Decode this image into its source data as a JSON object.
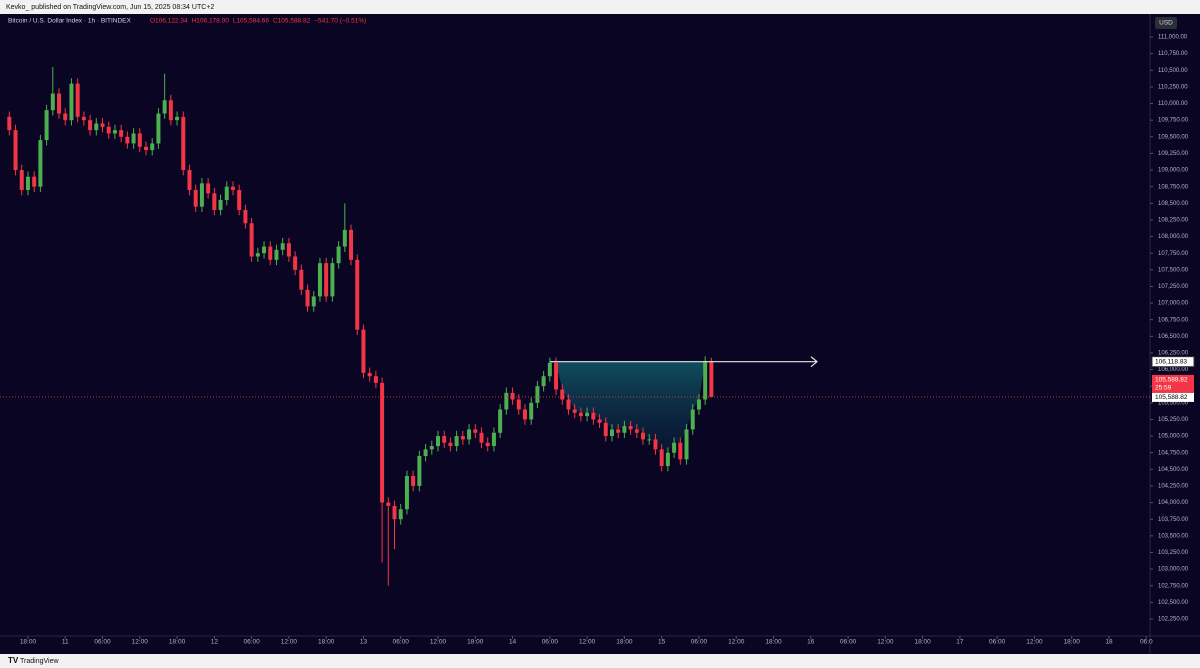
{
  "header": {
    "byline": "Kevko_ published on TradingView.com, Jun 15, 2025 08:34 UTC+2",
    "symbol": "Bitcoin / U.S. Dollar Index · 1h · BITINDEX",
    "ohlc": [
      "O106,122.34",
      "H106,178.00",
      "L105,584.66",
      "C105,588.82",
      "−541.70 (−0.51%)"
    ]
  },
  "footer": {
    "brand": "TradingView"
  },
  "chart_data": {
    "type": "candlestick",
    "currency": "USD",
    "up_color": "#4caf50",
    "down_color": "#f23645",
    "x": [
      0,
      1,
      2,
      3,
      4,
      5,
      6,
      7,
      8,
      9,
      10,
      11,
      12,
      13,
      14,
      15,
      16,
      17,
      18,
      19,
      20,
      21,
      22,
      23,
      24,
      25,
      26,
      27,
      28,
      29,
      30,
      31,
      32,
      33,
      34,
      35,
      36,
      37,
      38,
      39,
      40,
      41,
      42,
      43,
      44,
      45,
      46,
      47,
      48,
      49,
      50,
      51,
      52,
      53,
      54,
      55,
      56,
      57,
      58,
      59,
      60,
      61,
      62,
      63,
      64,
      65,
      66,
      67,
      68,
      69,
      70,
      71,
      72,
      73,
      74,
      75,
      76,
      77,
      78,
      79,
      80,
      81,
      82,
      83,
      84,
      85,
      86,
      87,
      88,
      89,
      90,
      91,
      92,
      93,
      94,
      95,
      96,
      97,
      98,
      99,
      100,
      101,
      102,
      103,
      104,
      105,
      106,
      107,
      108,
      109,
      110,
      111,
      112,
      113
    ],
    "open": [
      109800,
      109600,
      109000,
      108700,
      108900,
      108750,
      109450,
      109900,
      110150,
      109850,
      109750,
      110300,
      109800,
      109750,
      109600,
      109700,
      109650,
      109550,
      109600,
      109500,
      109400,
      109550,
      109350,
      109300,
      109400,
      109850,
      110050,
      109750,
      109800,
      109000,
      108700,
      108450,
      108800,
      108650,
      108400,
      108550,
      108750,
      108700,
      108400,
      108200,
      107700,
      107750,
      107850,
      107650,
      107800,
      107900,
      107700,
      107500,
      107200,
      106950,
      107100,
      107600,
      107100,
      107600,
      107850,
      108100,
      107650,
      106600,
      105950,
      105900,
      105800,
      104000,
      103950,
      103750,
      103900,
      104400,
      104250,
      104700,
      104800,
      104850,
      105000,
      104900,
      104850,
      105000,
      104950,
      105100,
      105050,
      104900,
      104850,
      105050,
      105400,
      105650,
      105550,
      105400,
      105250,
      105500,
      105750,
      105900,
      106100,
      105700,
      105550,
      105400,
      105350,
      105300,
      105350,
      105250,
      105200,
      105000,
      105100,
      105050,
      105150,
      105100,
      105050,
      104950,
      104950,
      104800,
      104550,
      104750,
      104900,
      104650,
      105100,
      105400,
      105550,
      106122.34
    ],
    "high": [
      109880,
      109680,
      109080,
      108980,
      108980,
      109530,
      109980,
      110550,
      110230,
      109930,
      110380,
      110380,
      109880,
      109830,
      109780,
      109780,
      109730,
      109680,
      109680,
      109580,
      109630,
      109630,
      109430,
      109480,
      109930,
      110450,
      110130,
      109880,
      109880,
      109080,
      108780,
      108880,
      108880,
      108730,
      108630,
      108830,
      108830,
      108780,
      108480,
      108280,
      107830,
      107930,
      107930,
      107880,
      107980,
      107980,
      107780,
      107580,
      107280,
      107180,
      107680,
      107680,
      107680,
      107930,
      108500,
      108180,
      107730,
      106680,
      106030,
      105980,
      105880,
      104080,
      104030,
      103980,
      104480,
      104480,
      104780,
      104880,
      104930,
      105080,
      105080,
      104980,
      105080,
      105080,
      105180,
      105180,
      105130,
      104980,
      105130,
      105480,
      105730,
      105730,
      105630,
      105480,
      105580,
      105830,
      105980,
      106180,
      106180,
      105780,
      105630,
      105480,
      105430,
      105430,
      105430,
      105330,
      105280,
      105180,
      105180,
      105230,
      105230,
      105180,
      105130,
      105030,
      105030,
      104880,
      104830,
      104980,
      104980,
      105180,
      105480,
      105630,
      106200,
      106178
    ],
    "low": [
      109520,
      108920,
      108620,
      108620,
      108670,
      108670,
      109370,
      109820,
      109770,
      109670,
      109670,
      109720,
      109670,
      109520,
      109520,
      109570,
      109470,
      109470,
      109420,
      109320,
      109320,
      109270,
      109220,
      109220,
      109320,
      109770,
      109670,
      109670,
      108920,
      108620,
      108370,
      108370,
      108570,
      108320,
      108320,
      108470,
      108620,
      108320,
      108120,
      107620,
      107620,
      107670,
      107570,
      107570,
      107720,
      107620,
      107420,
      107120,
      106870,
      106870,
      107020,
      107020,
      107020,
      107520,
      107770,
      107570,
      106520,
      105870,
      105820,
      105720,
      103100,
      102750,
      103300,
      103670,
      103820,
      104170,
      104170,
      104620,
      104720,
      104770,
      104820,
      104770,
      104770,
      104870,
      104870,
      104970,
      104820,
      104770,
      104770,
      104970,
      105320,
      105470,
      105320,
      105170,
      105170,
      105420,
      105670,
      105820,
      105620,
      105470,
      105320,
      105270,
      105220,
      105220,
      105170,
      105120,
      104920,
      104920,
      104970,
      104970,
      105020,
      104970,
      104870,
      104870,
      104720,
      104470,
      104470,
      104670,
      104570,
      104570,
      105020,
      105320,
      105470,
      105584.66
    ],
    "close": [
      109600,
      109000,
      108700,
      108900,
      108750,
      109450,
      109900,
      110150,
      109850,
      109750,
      110300,
      109800,
      109750,
      109600,
      109700,
      109650,
      109550,
      109600,
      109500,
      109400,
      109550,
      109350,
      109300,
      109400,
      109850,
      110050,
      109750,
      109800,
      109000,
      108700,
      108450,
      108800,
      108650,
      108400,
      108550,
      108750,
      108700,
      108400,
      108200,
      107700,
      107750,
      107850,
      107650,
      107800,
      107900,
      107700,
      107500,
      107200,
      106950,
      107100,
      107600,
      107100,
      107600,
      107850,
      108100,
      107650,
      106600,
      105950,
      105900,
      105800,
      104000,
      103950,
      103750,
      103900,
      104400,
      104250,
      104700,
      104800,
      104850,
      105000,
      104900,
      104850,
      105000,
      104950,
      105100,
      105050,
      104900,
      104850,
      105050,
      105400,
      105650,
      105550,
      105400,
      105250,
      105500,
      105750,
      105900,
      106100,
      105700,
      105550,
      105400,
      105350,
      105300,
      105350,
      105250,
      105200,
      105000,
      105100,
      105050,
      105150,
      105100,
      105050,
      104950,
      104950,
      104800,
      104550,
      104750,
      104900,
      104650,
      105100,
      105400,
      105550,
      106122.34,
      105588.82
    ],
    "xlim": [
      -1.5,
      183.6
    ],
    "xticks": [
      {
        "value": 3,
        "label": "18:00"
      },
      {
        "value": 9,
        "label": "11"
      },
      {
        "value": 15,
        "label": "06:00"
      },
      {
        "value": 21,
        "label": "12:00"
      },
      {
        "value": 27,
        "label": "18:00"
      },
      {
        "value": 33,
        "label": "12"
      },
      {
        "value": 39,
        "label": "06:00"
      },
      {
        "value": 45,
        "label": "12:00"
      },
      {
        "value": 51,
        "label": "18:00"
      },
      {
        "value": 57,
        "label": "13"
      },
      {
        "value": 63,
        "label": "06:00"
      },
      {
        "value": 69,
        "label": "12:00"
      },
      {
        "value": 75,
        "label": "18:00"
      },
      {
        "value": 81,
        "label": "14"
      },
      {
        "value": 87,
        "label": "06:00"
      },
      {
        "value": 93,
        "label": "12:00"
      },
      {
        "value": 99,
        "label": "18:00"
      },
      {
        "value": 105,
        "label": "15"
      },
      {
        "value": 111,
        "label": "06:00"
      },
      {
        "value": 117,
        "label": "12:00"
      },
      {
        "value": 123,
        "label": "18:00"
      },
      {
        "value": 129,
        "label": "16"
      },
      {
        "value": 135,
        "label": "06:00"
      },
      {
        "value": 141,
        "label": "12:00"
      },
      {
        "value": 147,
        "label": "18:00"
      },
      {
        "value": 153,
        "label": "17"
      },
      {
        "value": 159,
        "label": "06:00"
      },
      {
        "value": 165,
        "label": "12:00"
      },
      {
        "value": 171,
        "label": "18:00"
      },
      {
        "value": 177,
        "label": "18"
      },
      {
        "value": 183,
        "label": "06:0"
      }
    ],
    "ylim": [
      101994,
      111226
    ],
    "yticks": [
      {
        "value": 102250,
        "label": "102,250.00"
      },
      {
        "value": 102500,
        "label": "102,500.00"
      },
      {
        "value": 102750,
        "label": "102,750.00"
      },
      {
        "value": 103000,
        "label": "103,000.00"
      },
      {
        "value": 103250,
        "label": "103,250.00"
      },
      {
        "value": 103500,
        "label": "103,500.00"
      },
      {
        "value": 103750,
        "label": "103,750.00"
      },
      {
        "value": 104000,
        "label": "104,000.00"
      },
      {
        "value": 104250,
        "label": "104,250.00"
      },
      {
        "value": 104500,
        "label": "104,500.00"
      },
      {
        "value": 104750,
        "label": "104,750.00"
      },
      {
        "value": 105000,
        "label": "105,000.00"
      },
      {
        "value": 105250,
        "label": "105,250.00"
      },
      {
        "value": 105500,
        "label": "105,500.00"
      },
      {
        "value": 105750,
        "label": "105,750.00"
      },
      {
        "value": 106000,
        "label": "106,000.00"
      },
      {
        "value": 106250,
        "label": "106,250.00"
      },
      {
        "value": 106500,
        "label": "106,500.00"
      },
      {
        "value": 106750,
        "label": "106,750.00"
      },
      {
        "value": 107000,
        "label": "107,000.00"
      },
      {
        "value": 107250,
        "label": "107,250.00"
      },
      {
        "value": 107500,
        "label": "107,500.00"
      },
      {
        "value": 107750,
        "label": "107,750.00"
      },
      {
        "value": 108000,
        "label": "108,000.00"
      },
      {
        "value": 108250,
        "label": "108,250.00"
      },
      {
        "value": 108500,
        "label": "108,500.00"
      },
      {
        "value": 108750,
        "label": "108,750.00"
      },
      {
        "value": 109000,
        "label": "109,000.00"
      },
      {
        "value": 109250,
        "label": "109,250.00"
      },
      {
        "value": 109500,
        "label": "109,500.00"
      },
      {
        "value": 109750,
        "label": "109,750.00"
      },
      {
        "value": 110000,
        "label": "110,000.00"
      },
      {
        "value": 110250,
        "label": "110,250.00"
      },
      {
        "value": 110500,
        "label": "110,500.00"
      },
      {
        "value": 110750,
        "label": "110,750.00"
      },
      {
        "value": 111000,
        "label": "111,000.00"
      }
    ],
    "level": {
      "value": 106118.83,
      "label": "106,118.83",
      "x_start": 87,
      "x_end": 130
    },
    "last_price": {
      "value": 105588.82,
      "label": "105,588.82",
      "countdown": "25:59"
    }
  }
}
